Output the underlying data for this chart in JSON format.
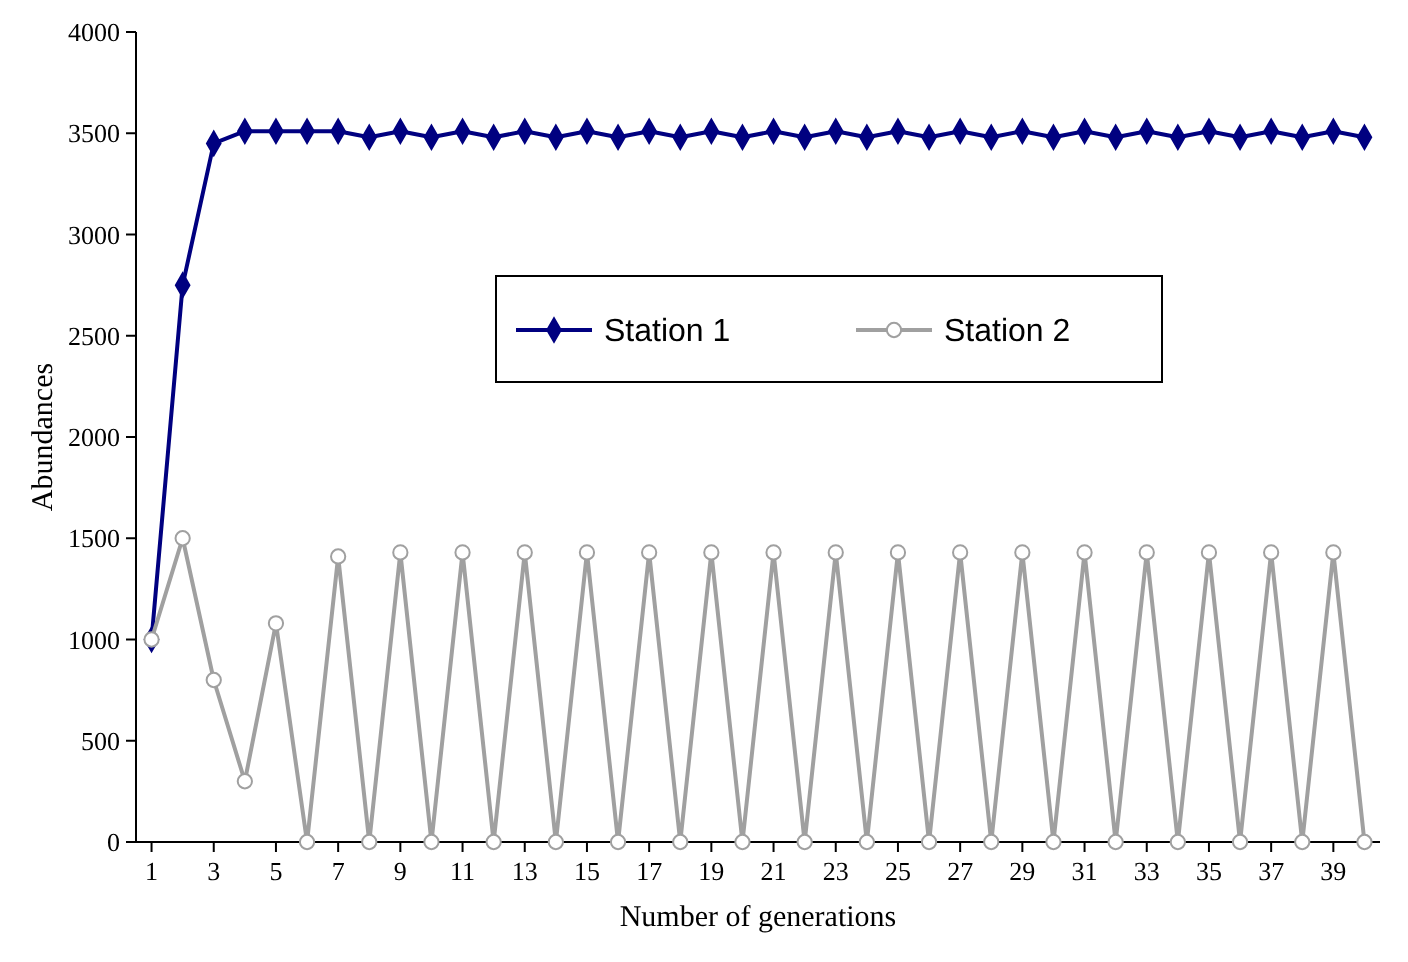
{
  "chart_data": {
    "type": "line",
    "xlabel": "Number of generations",
    "ylabel": "Abundances",
    "x": [
      1,
      2,
      3,
      4,
      5,
      6,
      7,
      8,
      9,
      10,
      11,
      12,
      13,
      14,
      15,
      16,
      17,
      18,
      19,
      20,
      21,
      22,
      23,
      24,
      25,
      26,
      27,
      28,
      29,
      30,
      31,
      32,
      33,
      34,
      35,
      36,
      37,
      38,
      39,
      40
    ],
    "xlim": [
      0.5,
      40.5
    ],
    "xticks": [
      1,
      3,
      5,
      7,
      9,
      11,
      13,
      15,
      17,
      19,
      21,
      23,
      25,
      27,
      29,
      31,
      33,
      35,
      37,
      39
    ],
    "ylim": [
      0,
      4000
    ],
    "yticks": [
      0,
      500,
      1000,
      1500,
      2000,
      2500,
      3000,
      3500,
      4000
    ],
    "grid": false,
    "legend": "right",
    "line_style": "solid",
    "series": [
      {
        "name": "Station 1",
        "color": "#000080",
        "marker": "diamond",
        "values": [
          1000,
          2750,
          3450,
          3510,
          3510,
          3510,
          3510,
          3480,
          3510,
          3480,
          3510,
          3480,
          3510,
          3480,
          3510,
          3480,
          3510,
          3480,
          3510,
          3480,
          3510,
          3480,
          3510,
          3480,
          3510,
          3480,
          3510,
          3480,
          3510,
          3480,
          3510,
          3480,
          3510,
          3480,
          3510,
          3480,
          3510,
          3480,
          3510,
          3480
        ]
      },
      {
        "name": "Station 2",
        "color": "#a0a0a0",
        "marker": "circle",
        "values": [
          1000,
          1500,
          800,
          300,
          1080,
          0,
          1410,
          0,
          1430,
          0,
          1430,
          0,
          1430,
          0,
          1430,
          0,
          1430,
          0,
          1430,
          0,
          1430,
          0,
          1430,
          0,
          1430,
          0,
          1430,
          0,
          1430,
          0,
          1430,
          0,
          1430,
          0,
          1430,
          0,
          1430,
          0,
          1430,
          0
        ]
      }
    ]
  }
}
